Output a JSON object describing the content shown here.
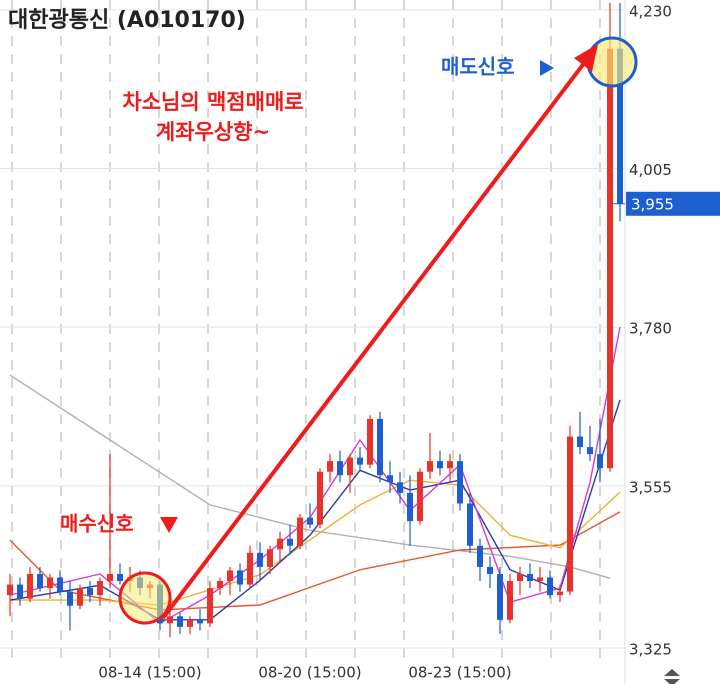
{
  "chart_data": {
    "type": "candlestick",
    "title": "대한광통신 (A010170)",
    "up_color": "#e8322b",
    "down_color": "#1e5fd0",
    "categories": [
      null,
      null,
      null,
      null,
      null,
      null,
      null,
      null,
      null,
      null,
      null,
      null,
      null,
      null,
      "08-14 (15:00)",
      null,
      null,
      null,
      null,
      null,
      null,
      null,
      null,
      null,
      null,
      null,
      null,
      null,
      null,
      null,
      "08-20 (15:00)",
      null,
      null,
      null,
      null,
      null,
      null,
      null,
      null,
      null,
      null,
      null,
      null,
      null,
      null,
      "08-23 (15:00)",
      null,
      null,
      null,
      null,
      null,
      null,
      null,
      null,
      null,
      null,
      null,
      null,
      null,
      null,
      null,
      null
    ],
    "open": [
      3400,
      3415,
      3395,
      3430,
      3410,
      3425,
      3405,
      3385,
      3410,
      3400,
      3420,
      3430,
      3420,
      3425,
      3410,
      3415,
      3360,
      3370,
      3355,
      3365,
      3360,
      3410,
      3420,
      3435,
      3415,
      3460,
      3440,
      3465,
      3480,
      3470,
      3510,
      3500,
      3575,
      3590,
      3570,
      3595,
      3585,
      3650,
      3570,
      3560,
      3545,
      3505,
      3575,
      3590,
      3580,
      3590,
      3530,
      3470,
      3440,
      3430,
      3365,
      3420,
      3430,
      3420,
      3425,
      3400,
      3405,
      3625,
      3610,
      3600,
      3580,
      4175
    ],
    "high": [
      3430,
      3425,
      3440,
      3440,
      3430,
      3435,
      3420,
      3415,
      3420,
      3425,
      3600,
      3445,
      3440,
      3435,
      3420,
      3420,
      3380,
      3375,
      3370,
      3380,
      3420,
      3425,
      3440,
      3445,
      3470,
      3475,
      3470,
      3490,
      3500,
      3515,
      3530,
      3580,
      3600,
      3605,
      3600,
      3610,
      3655,
      3660,
      3590,
      3575,
      3570,
      3580,
      3630,
      3605,
      3600,
      3600,
      3545,
      3480,
      3455,
      3440,
      3430,
      3440,
      3445,
      3440,
      3435,
      3415,
      3640,
      3660,
      3640,
      3650,
      4240,
      4240
    ],
    "low": [
      3370,
      3385,
      3390,
      3405,
      3395,
      3400,
      3350,
      3380,
      3390,
      3385,
      3410,
      3415,
      3405,
      3400,
      3395,
      3350,
      3340,
      3345,
      3345,
      3350,
      3355,
      3400,
      3400,
      3405,
      3410,
      3420,
      3430,
      3445,
      3460,
      3465,
      3495,
      3495,
      3560,
      3560,
      3545,
      3575,
      3580,
      3560,
      3545,
      3530,
      3470,
      3500,
      3565,
      3570,
      3560,
      3520,
      3460,
      3420,
      3410,
      3345,
      3360,
      3400,
      3410,
      3405,
      3395,
      3390,
      3400,
      3600,
      3590,
      3560,
      3575,
      3930
    ],
    "close": [
      3415,
      3395,
      3430,
      3410,
      3425,
      3405,
      3385,
      3410,
      3400,
      3420,
      3430,
      3420,
      3425,
      3410,
      3415,
      3360,
      3370,
      3355,
      3365,
      3360,
      3410,
      3420,
      3435,
      3415,
      3460,
      3440,
      3465,
      3480,
      3470,
      3510,
      3500,
      3575,
      3590,
      3570,
      3595,
      3585,
      3650,
      3570,
      3560,
      3545,
      3505,
      3575,
      3590,
      3580,
      3590,
      3530,
      3470,
      3440,
      3430,
      3365,
      3420,
      3430,
      3420,
      3425,
      3400,
      3405,
      3625,
      3610,
      3600,
      3580,
      4175,
      3955
    ],
    "ma_lines": [
      {
        "color": "#b0b0b0",
        "x": [
          0,
          10,
          20,
          30,
          40,
          50,
          56,
          60
        ],
        "values": [
          3712,
          3620,
          3528,
          3492,
          3471,
          3455,
          3440,
          3424
        ]
      },
      {
        "color": "#e05a2a",
        "x": [
          0,
          5,
          15,
          25,
          35,
          45,
          55,
          61
        ],
        "values": [
          3478,
          3407,
          3379,
          3386,
          3436,
          3464,
          3471,
          3518
        ]
      },
      {
        "color": "#f0b030",
        "x": [
          0,
          9,
          15,
          25,
          35,
          40,
          45,
          50,
          55,
          61
        ],
        "values": [
          3393,
          3393,
          3386,
          3429,
          3528,
          3563,
          3556,
          3485,
          3467,
          3546
        ]
      },
      {
        "color": "#2a3aa8",
        "x": [
          0,
          9,
          15,
          20,
          25,
          30,
          35,
          40,
          45,
          50,
          55,
          61
        ],
        "values": [
          3393,
          3414,
          3365,
          3365,
          3421,
          3485,
          3577,
          3549,
          3563,
          3436,
          3407,
          3677
        ]
      },
      {
        "color": "#d63ad6",
        "x": [
          0,
          9,
          15,
          20,
          25,
          30,
          35,
          40,
          45,
          50,
          55,
          58,
          61
        ],
        "values": [
          3400,
          3430,
          3360,
          3400,
          3450,
          3510,
          3620,
          3520,
          3585,
          3390,
          3410,
          3560,
          3780
        ]
      }
    ],
    "ylim": [
      3308,
      4244
    ],
    "yticks": [
      {
        "value": 3325,
        "label": "3,325"
      },
      {
        "value": 3555,
        "label": "3,555"
      },
      {
        "value": 3780,
        "label": "3,780"
      },
      {
        "value": 4005,
        "label": "4,005"
      },
      {
        "value": 4230,
        "label": "4,230"
      }
    ],
    "last_price": {
      "value": 3955,
      "label": "3,955"
    },
    "annotations": [
      "차소님의 맥점매매로",
      "계좌우상향~",
      "매수신호",
      "매도신호"
    ]
  }
}
